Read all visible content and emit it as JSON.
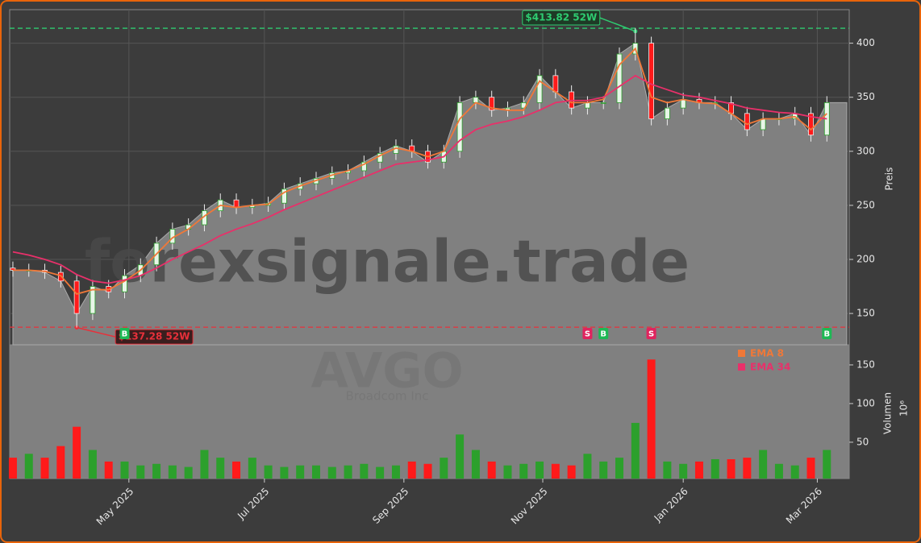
{
  "chart_data": {
    "type": "candlestick",
    "watermark": "forexsignale.trade",
    "ticker": "AVGO",
    "company": "Broadcom Inc",
    "ylabel": "Preis",
    "xlim": [
      -0.2,
      52.4
    ],
    "xticks": [
      {
        "value": 7.27,
        "label": "May 2025"
      },
      {
        "value": 15.76,
        "label": "Jul 2025"
      },
      {
        "value": 24.5,
        "label": "Sep 2025"
      },
      {
        "value": 33.2,
        "label": "Nov 2025"
      },
      {
        "value": 42.0,
        "label": "Jan 2026"
      },
      {
        "value": 50.4,
        "label": "Mar 2026"
      }
    ],
    "ylim": [
      121,
      431
    ],
    "yticks": [
      150,
      200,
      250,
      300,
      350,
      400
    ],
    "grid": true,
    "ohlc": {
      "open": [
        192,
        190,
        190,
        188,
        180,
        150,
        175,
        170,
        185,
        195,
        215,
        228,
        232,
        245,
        255,
        248,
        250,
        252,
        265,
        270,
        275,
        280,
        282,
        290,
        298,
        305,
        300,
        290,
        300,
        345,
        350,
        338,
        340,
        345,
        370,
        355,
        340,
        345,
        345,
        390,
        400,
        330,
        340,
        348,
        345,
        345,
        335,
        320,
        330,
        330,
        335,
        315
      ],
      "high": [
        198,
        196,
        196,
        194,
        186,
        181,
        181,
        191,
        201,
        221,
        234,
        238,
        251,
        261,
        261,
        256,
        258,
        271,
        276,
        281,
        286,
        288,
        296,
        304,
        311,
        311,
        306,
        306,
        351,
        356,
        356,
        346,
        351,
        376,
        376,
        361,
        351,
        351,
        396,
        414,
        406,
        346,
        354,
        354,
        351,
        351,
        341,
        336,
        336,
        341,
        341,
        351
      ],
      "low": [
        184,
        184,
        182,
        174,
        137,
        144,
        164,
        164,
        179,
        189,
        209,
        222,
        226,
        239,
        242,
        242,
        244,
        246,
        259,
        264,
        269,
        274,
        276,
        284,
        292,
        294,
        284,
        284,
        294,
        339,
        332,
        332,
        334,
        339,
        349,
        334,
        334,
        339,
        339,
        384,
        324,
        324,
        334,
        339,
        339,
        329,
        314,
        314,
        324,
        324,
        309,
        309
      ],
      "close": [
        190,
        190,
        188,
        180,
        150,
        175,
        170,
        185,
        195,
        215,
        228,
        232,
        245,
        255,
        248,
        250,
        252,
        265,
        270,
        275,
        280,
        282,
        290,
        298,
        305,
        300,
        290,
        300,
        345,
        350,
        338,
        340,
        345,
        370,
        355,
        340,
        345,
        345,
        390,
        400,
        330,
        340,
        348,
        345,
        345,
        335,
        320,
        330,
        330,
        335,
        315,
        345
      ]
    },
    "up_color": "#2ca02c",
    "down_color": "#ff1a1a",
    "series": [
      {
        "name": "EMA 8",
        "color": "#f07838",
        "values": [
          190,
          190,
          189,
          185,
          168,
          172,
          172,
          180,
          190,
          205,
          220,
          228,
          240,
          250,
          248,
          250,
          251,
          262,
          268,
          273,
          278,
          282,
          288,
          296,
          303,
          300,
          295,
          300,
          330,
          345,
          340,
          338,
          338,
          365,
          355,
          345,
          345,
          348,
          380,
          395,
          350,
          345,
          348,
          345,
          344,
          335,
          325,
          330,
          330,
          332,
          320,
          335
        ]
      },
      {
        "name": "EMA 34",
        "color": "#e8306a",
        "values": [
          207,
          204,
          200,
          195,
          186,
          180,
          178,
          181,
          185,
          192,
          200,
          207,
          214,
          222,
          228,
          233,
          239,
          246,
          252,
          258,
          264,
          270,
          276,
          282,
          288,
          290,
          292,
          295,
          310,
          320,
          325,
          328,
          332,
          338,
          345,
          347,
          347,
          350,
          360,
          370,
          362,
          357,
          352,
          350,
          347,
          344,
          340,
          338,
          336,
          335,
          332,
          330
        ]
      }
    ],
    "ref_lines": [
      {
        "value": 413.82,
        "label": "$413.82 52W",
        "color": "#2ecc71"
      },
      {
        "value": 137.28,
        "label": "$137.28 52W",
        "color": "#e8303a"
      }
    ],
    "signals": [
      {
        "label": "B",
        "index": 7,
        "color": "#1db954"
      },
      {
        "label": "S",
        "index": 36,
        "color": "#e0245e"
      },
      {
        "label": "B",
        "index": 37,
        "color": "#1db954"
      },
      {
        "label": "S",
        "index": 40,
        "color": "#e0245e"
      },
      {
        "label": "B",
        "index": 51,
        "color": "#1db954"
      }
    ],
    "volume": {
      "label": "Volumen",
      "unit": "10⁶",
      "ylim": [
        3,
        176
      ],
      "yticks": [
        50,
        100,
        150
      ],
      "values": [
        30,
        35,
        30,
        45,
        70,
        40,
        25,
        25,
        20,
        22,
        20,
        18,
        40,
        30,
        25,
        30,
        20,
        18,
        20,
        20,
        18,
        20,
        22,
        18,
        20,
        25,
        22,
        30,
        60,
        40,
        25,
        20,
        22,
        25,
        22,
        20,
        35,
        25,
        30,
        75,
        157,
        25,
        22,
        25,
        28,
        28,
        30,
        40,
        22,
        20,
        30,
        40
      ]
    }
  }
}
